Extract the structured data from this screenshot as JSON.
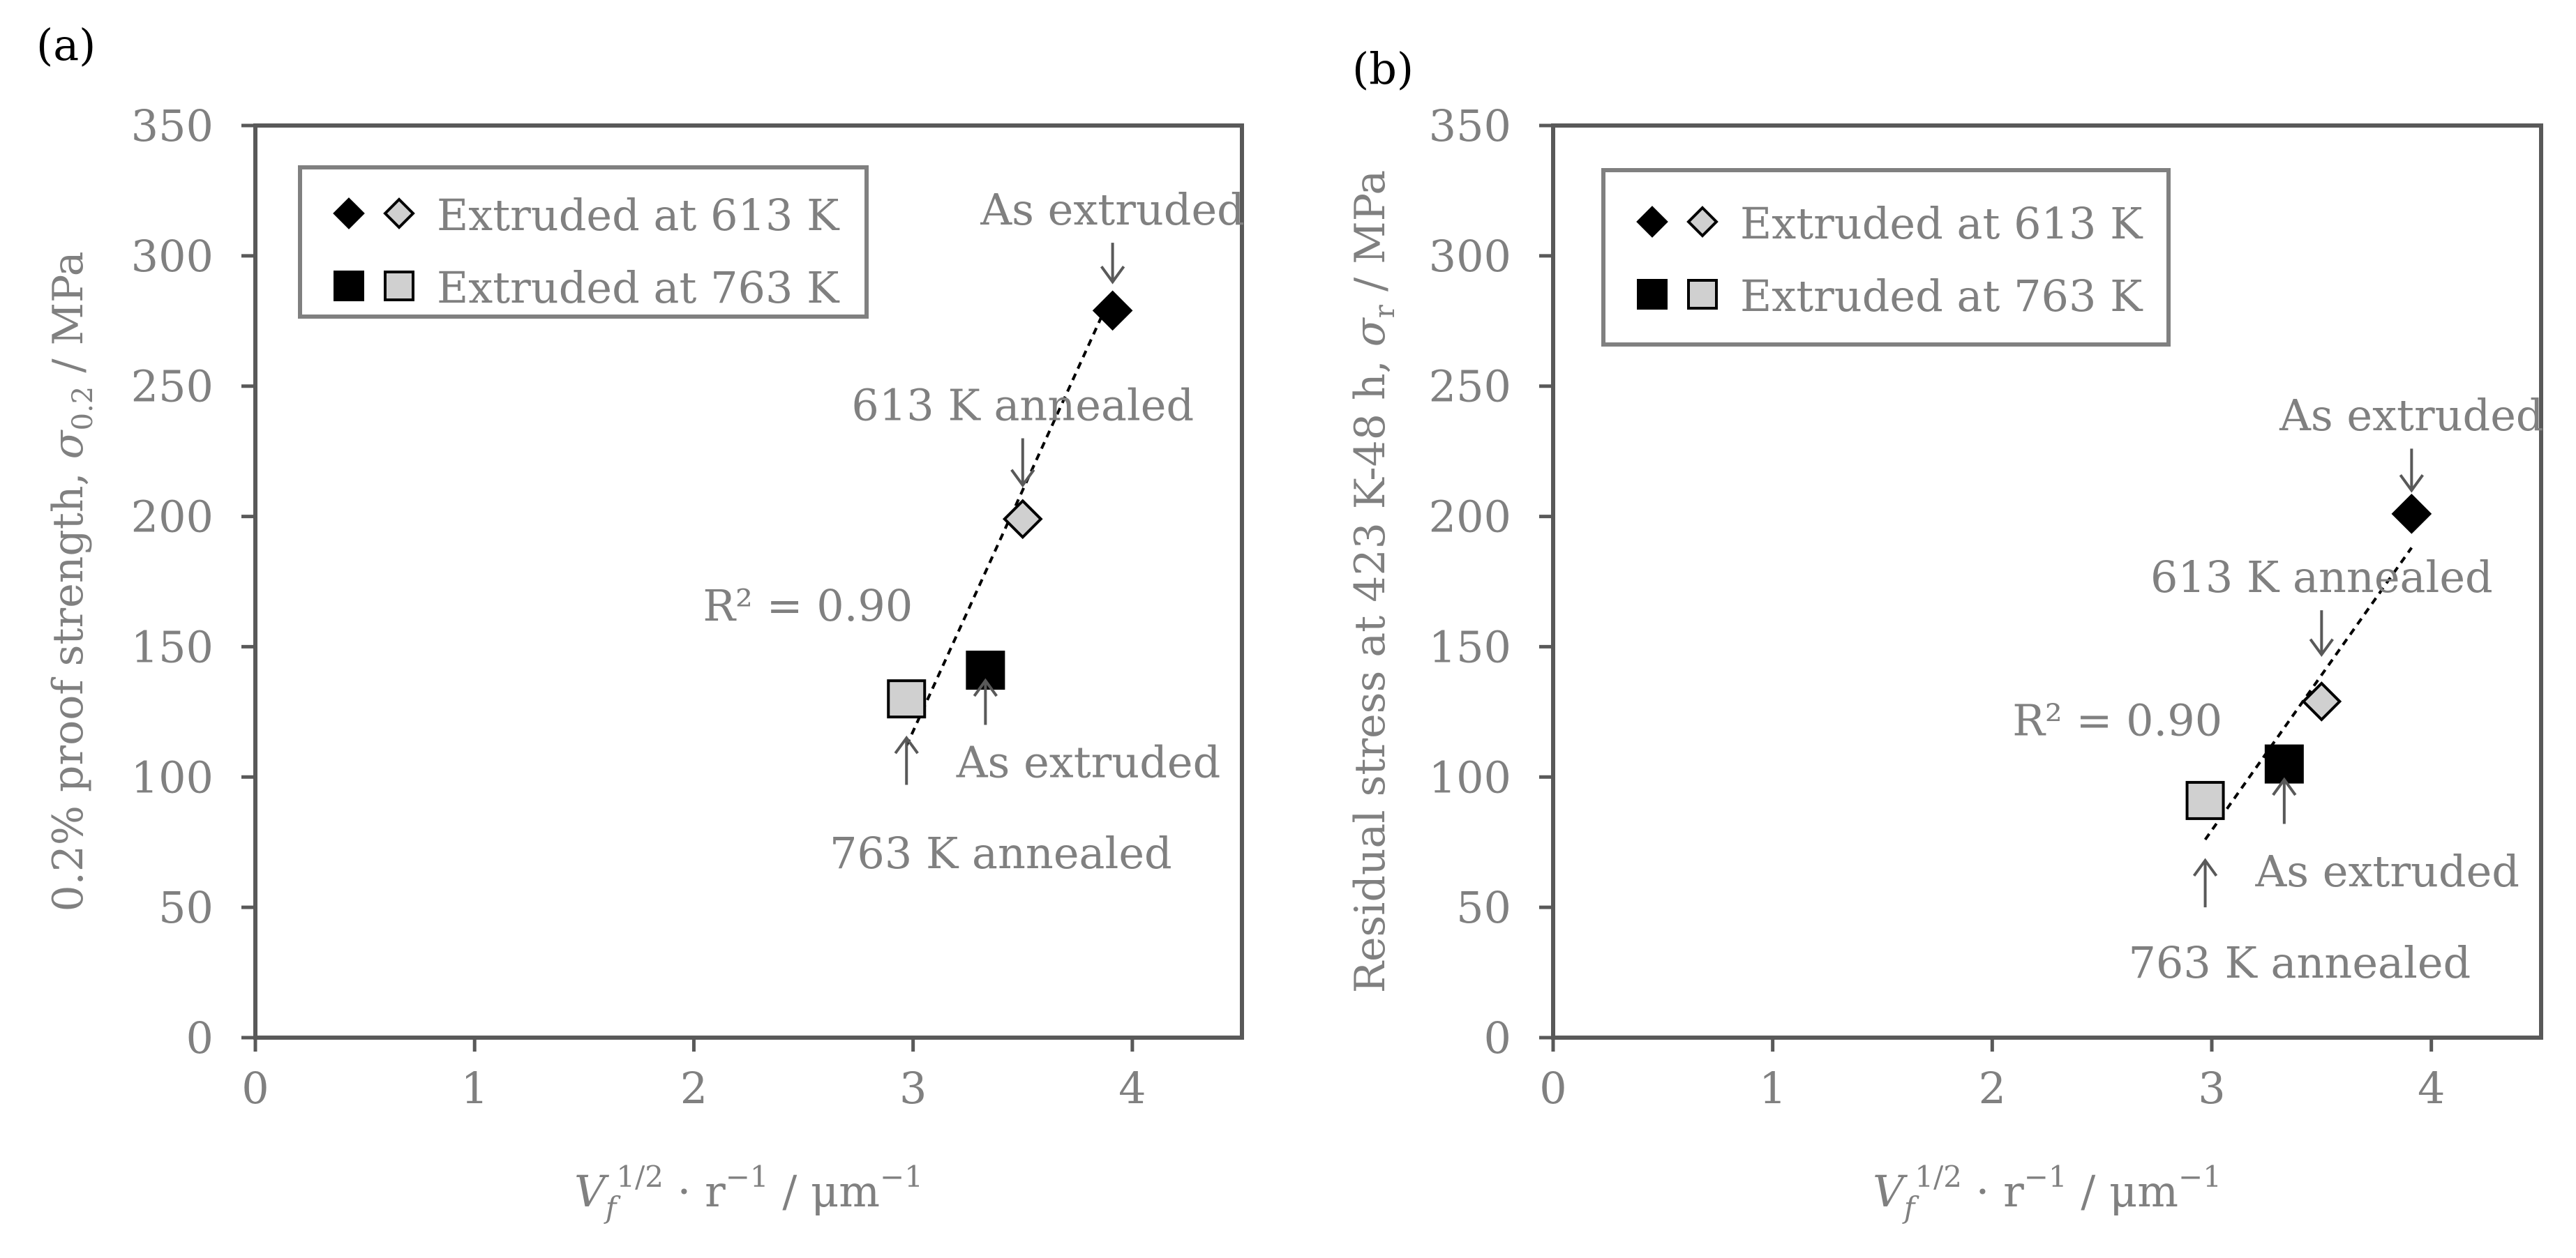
{
  "colors": {
    "text": "#808080",
    "axis": "#595959",
    "black_marker": "#000000",
    "grey_marker": "#d0d0d0",
    "trend": "#000000"
  },
  "chart_data": [
    {
      "panel_label": "(a)",
      "type": "scatter",
      "ylabel_prefix": "0.2% proof strength, ",
      "ylabel_sym": "σ",
      "ylabel_sub": "0.2",
      "ylabel_suffix": " / MPa",
      "xlabel": {
        "V": "V",
        "f": "f",
        "sup": "1/2",
        "rest": " · r",
        "sup2": "−1",
        "unit": " / μm",
        "sup3": "−1"
      },
      "xlim": [
        0,
        4.5
      ],
      "ylim": [
        0,
        350
      ],
      "xticks": [
        "0",
        "1",
        "2",
        "3",
        "4"
      ],
      "yticks": [
        "0",
        "50",
        "100",
        "150",
        "200",
        "250",
        "300",
        "350"
      ],
      "legend": {
        "position": "top-left",
        "entries": [
          {
            "markers": [
              "diamond-black",
              "diamond-grey"
            ],
            "label": "Extruded at 613 K"
          },
          {
            "markers": [
              "square-black",
              "square-grey"
            ],
            "label": "Extruded at 763 K"
          }
        ]
      },
      "series": [
        {
          "name": "Extruded at 613 K",
          "points": [
            {
              "x": 3.91,
              "y": 279,
              "marker": "diamond",
              "fill": "black"
            },
            {
              "x": 3.5,
              "y": 199,
              "marker": "diamond",
              "fill": "grey"
            }
          ]
        },
        {
          "name": "Extruded at 763 K",
          "points": [
            {
              "x": 3.33,
              "y": 141,
              "marker": "square",
              "fill": "black"
            },
            {
              "x": 2.97,
              "y": 130,
              "marker": "square",
              "fill": "grey"
            }
          ]
        }
      ],
      "trendline": {
        "x": [
          2.97,
          3.91
        ],
        "y": [
          112,
          286
        ]
      },
      "annotations": [
        {
          "text": "As extruded",
          "x": 3.91,
          "y": 312,
          "arrow": "down",
          "arrow_from": 305,
          "arrow_to": 290
        },
        {
          "text": "613 K annealed",
          "x": 3.5,
          "y": 237,
          "arrow": "down",
          "arrow_from": 230,
          "arrow_to": 212
        },
        {
          "text": "R² = 0.90",
          "x": 2.52,
          "y": 160,
          "arrow": "none"
        },
        {
          "text": "As extruded",
          "x": 3.8,
          "y": 100,
          "arrow": "up",
          "arrow_from": 120,
          "arrow_to": 137
        },
        {
          "text": "763 K annealed",
          "x": 3.4,
          "y": 65,
          "arrow": "up",
          "arrow_from": 97,
          "arrow_to": 115
        }
      ]
    },
    {
      "panel_label": "(b)",
      "type": "scatter",
      "ylabel_prefix": "Residual stress at 423 K-48 h, ",
      "ylabel_sym": "σ",
      "ylabel_sub": "r",
      "ylabel_suffix": " / MPa",
      "xlabel": {
        "V": "V",
        "f": "f",
        "sup": "1/2",
        "rest": " · r",
        "sup2": "−1",
        "unit": " / μm",
        "sup3": "−1"
      },
      "xlim": [
        0,
        4.5
      ],
      "ylim": [
        0,
        350
      ],
      "xticks": [
        "0",
        "1",
        "2",
        "3",
        "4"
      ],
      "yticks": [
        "0",
        "50",
        "100",
        "150",
        "200",
        "250",
        "300",
        "350"
      ],
      "legend": {
        "position": "top-left",
        "entries": [
          {
            "markers": [
              "diamond-black",
              "diamond-grey"
            ],
            "label": "Extruded at 613 K"
          },
          {
            "markers": [
              "square-black",
              "square-grey"
            ],
            "label": "Extruded at 763 K"
          }
        ]
      },
      "series": [
        {
          "name": "Extruded at 613 K",
          "points": [
            {
              "x": 3.91,
              "y": 201,
              "marker": "diamond",
              "fill": "black"
            },
            {
              "x": 3.5,
              "y": 129,
              "marker": "diamond",
              "fill": "grey"
            }
          ]
        },
        {
          "name": "Extruded at 763 K",
          "points": [
            {
              "x": 3.33,
              "y": 105,
              "marker": "square",
              "fill": "black"
            },
            {
              "x": 2.97,
              "y": 91,
              "marker": "square",
              "fill": "grey"
            }
          ]
        }
      ],
      "trendline": {
        "x": [
          2.97,
          3.91
        ],
        "y": [
          76,
          188
        ]
      },
      "annotations": [
        {
          "text": "As extruded",
          "x": 3.91,
          "y": 233,
          "arrow": "down",
          "arrow_from": 226,
          "arrow_to": 210
        },
        {
          "text": "613 K annealed",
          "x": 3.5,
          "y": 171,
          "arrow": "down",
          "arrow_from": 164,
          "arrow_to": 147
        },
        {
          "text": "R² = 0.90",
          "x": 2.57,
          "y": 116,
          "arrow": "none"
        },
        {
          "text": "As extruded",
          "x": 3.8,
          "y": 58,
          "arrow": "up",
          "arrow_from": 82,
          "arrow_to": 99
        },
        {
          "text": "763 K annealed",
          "x": 3.4,
          "y": 23,
          "arrow": "up",
          "arrow_from": 50,
          "arrow_to": 68
        }
      ]
    }
  ]
}
